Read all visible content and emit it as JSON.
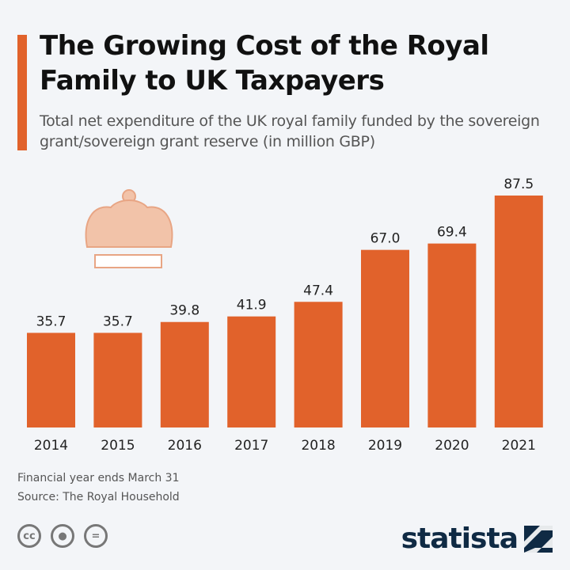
{
  "colors": {
    "bar": "#e1622b",
    "crown": "#f2c3a9",
    "text": "#111111"
  },
  "chart_data": {
    "type": "bar",
    "title": "The Growing Cost of the Royal Family to UK Taxpayers",
    "subtitle": "Total net expenditure of the UK royal family funded by the sovereign grant/sovereign grant reserve (in million GBP)",
    "categories": [
      "2014",
      "2015",
      "2016",
      "2017",
      "2018",
      "2019",
      "2020",
      "2021"
    ],
    "values": [
      35.7,
      35.7,
      39.8,
      41.9,
      47.4,
      67.0,
      69.4,
      87.5
    ],
    "labels": [
      "35.7",
      "35.7",
      "39.8",
      "41.9",
      "47.4",
      "67.0",
      "69.4",
      "87.5"
    ],
    "ylim": [
      0,
      87.5
    ],
    "grid": false
  },
  "footer": {
    "note": "Financial year ends March 31",
    "source": "Source: The Royal Household",
    "brand": "statista",
    "icons": [
      "cc-icon",
      "attribution-icon",
      "no-derivatives-icon"
    ]
  }
}
